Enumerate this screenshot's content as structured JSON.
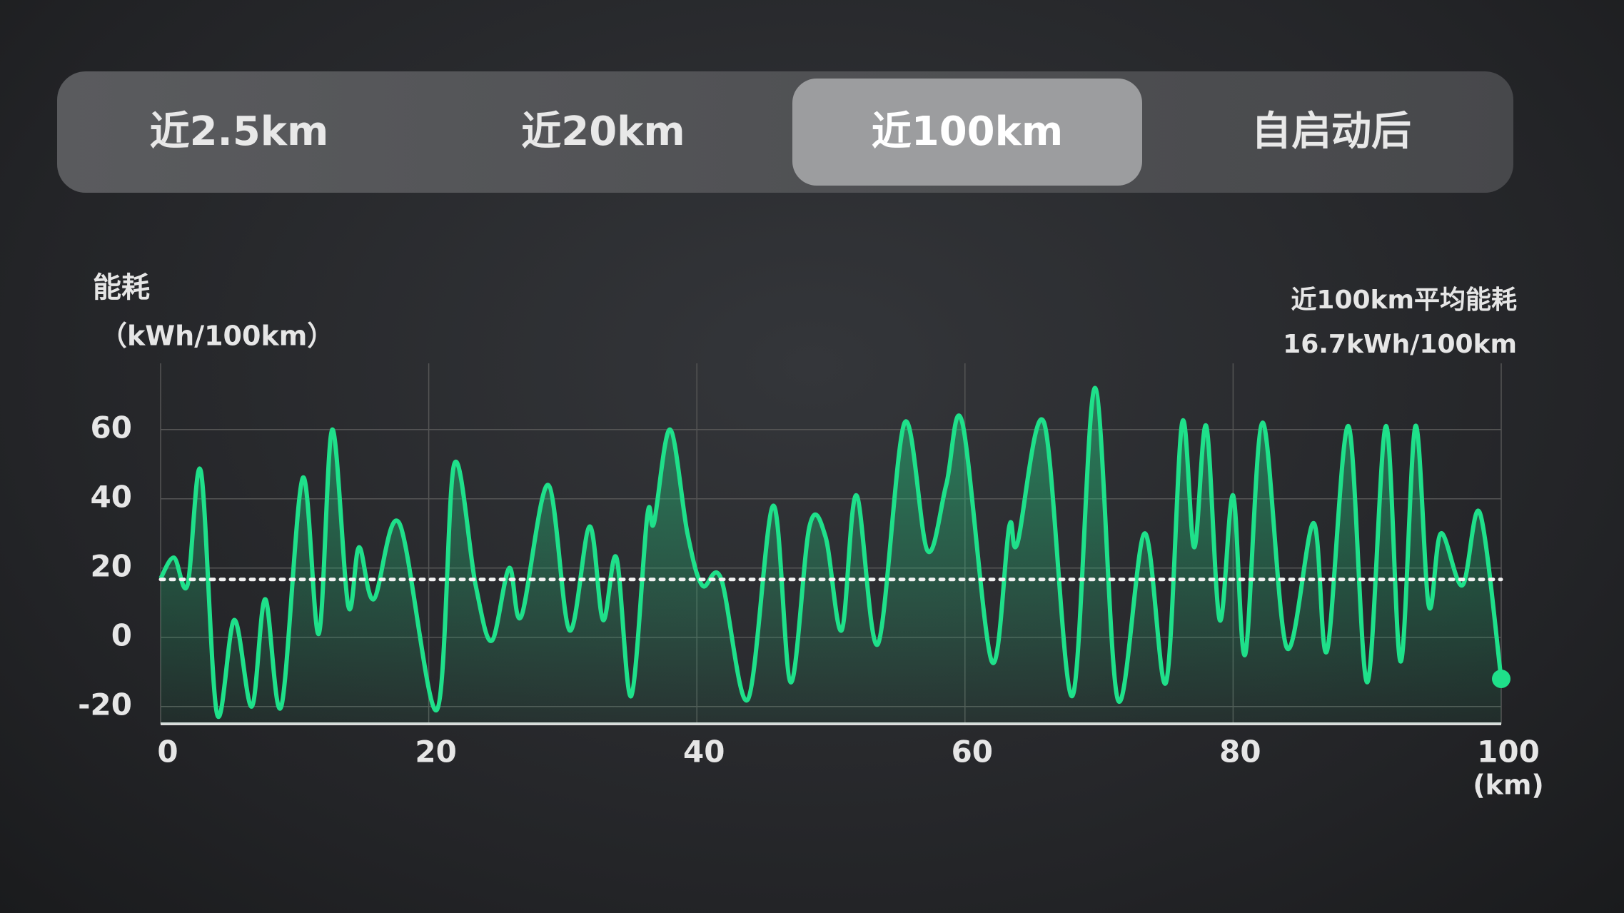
{
  "tabs": [
    "近2.5km",
    "近20km",
    "近100km",
    "自启动后"
  ],
  "active_tab": 2,
  "chart_data": {
    "type": "line",
    "y_title": "能耗",
    "y_unit": "（kWh/100km）",
    "x_unit": "(km)",
    "annotation": {
      "title": "近100km平均能耗",
      "value": "16.7kWh/100km"
    },
    "average": 16.7,
    "xlim": [
      0,
      100
    ],
    "xticks": [
      0,
      20,
      40,
      60,
      80,
      100
    ],
    "ylim": [
      -25,
      75
    ],
    "yticks": [
      -20,
      0,
      20,
      40,
      60
    ],
    "grid": true,
    "series": [
      {
        "name": "能耗",
        "color": "#1fe08a",
        "x": [
          0,
          1,
          2,
          3,
          4.2,
          5.5,
          6.8,
          7.8,
          9,
          10.6,
          11.8,
          12.8,
          14,
          14.8,
          15.9,
          17.8,
          20.6,
          21.9,
          23.5,
          24.7,
          26,
          26.9,
          28.9,
          30.5,
          32,
          33,
          34,
          35.1,
          36.3,
          36.8,
          38,
          39.3,
          40.4,
          41.8,
          43.8,
          45.7,
          47,
          48.4,
          49.6,
          50.8,
          51.9,
          53.5,
          55.5,
          57.2,
          58.6,
          59.8,
          62,
          63.3,
          63.9,
          65.9,
          68,
          69.7,
          71.4,
          73.4,
          75,
          76.2,
          77.1,
          78,
          79,
          80,
          80.9,
          82.2,
          84,
          86,
          87,
          88.6,
          90,
          91.4,
          92.5,
          93.6,
          94.6,
          95.5,
          97.1,
          98.4,
          100
        ],
        "values": [
          17,
          23,
          15,
          48,
          -22,
          5,
          -20,
          11,
          -20,
          46,
          1,
          60,
          9,
          26,
          11,
          33,
          -21,
          50,
          15,
          -1,
          20,
          6,
          44,
          2,
          32,
          5,
          23,
          -17,
          35,
          33,
          60,
          30,
          15,
          17,
          -18,
          38,
          -13,
          32,
          29,
          2,
          41,
          -2,
          62,
          25,
          44,
          62,
          -7,
          32,
          27,
          62,
          -17,
          72,
          -18,
          30,
          -13,
          62,
          26,
          61,
          5,
          41,
          -5,
          62,
          -3,
          33,
          -4,
          61,
          -13,
          61,
          -7,
          61,
          9,
          30,
          15,
          36,
          -12
        ]
      }
    ]
  }
}
